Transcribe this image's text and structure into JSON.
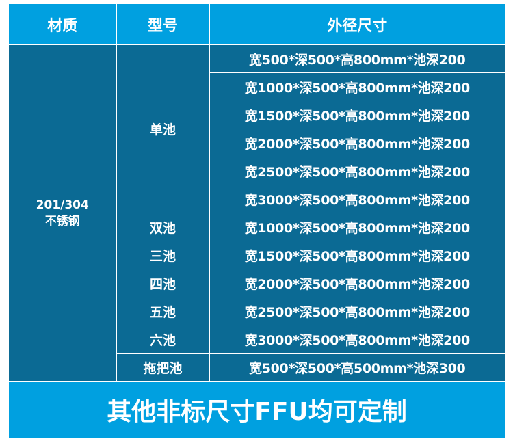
{
  "header": {
    "material": "材质",
    "model": "型号",
    "size": "外径尺寸"
  },
  "material": {
    "line1": "201/304",
    "line2": "不锈钢"
  },
  "groups": [
    {
      "model": "单池",
      "sizes": [
        "宽500*深500*高800mm*池深200",
        "宽1000*深500*高800mm*池深200",
        "宽1500*深500*高800mm*池深200",
        "宽2000*深500*高800mm*池深200",
        "宽2500*深500*高800mm*池深200",
        "宽3000*深500*高800mm*池深200"
      ]
    },
    {
      "model": "双池",
      "sizes": [
        "宽1000*深500*高800mm*池深200"
      ]
    },
    {
      "model": "三池",
      "sizes": [
        "宽1500*深500*高800mm*池深200"
      ]
    },
    {
      "model": "四池",
      "sizes": [
        "宽2000*深500*高800mm*池深200"
      ]
    },
    {
      "model": "五池",
      "sizes": [
        "宽2500*深500*高800mm*池深200"
      ]
    },
    {
      "model": "六池",
      "sizes": [
        "宽3000*深500*高800mm*池深200"
      ]
    },
    {
      "model": "拖把池",
      "sizes": [
        "宽500*深500*高500mm*池深300"
      ]
    }
  ],
  "footer": {
    "text": "其他非标尺寸FFU均可定制"
  },
  "colors": {
    "header_bg": "#00a0e0",
    "body_bg": "#0b6a94",
    "text": "#ffffff"
  }
}
